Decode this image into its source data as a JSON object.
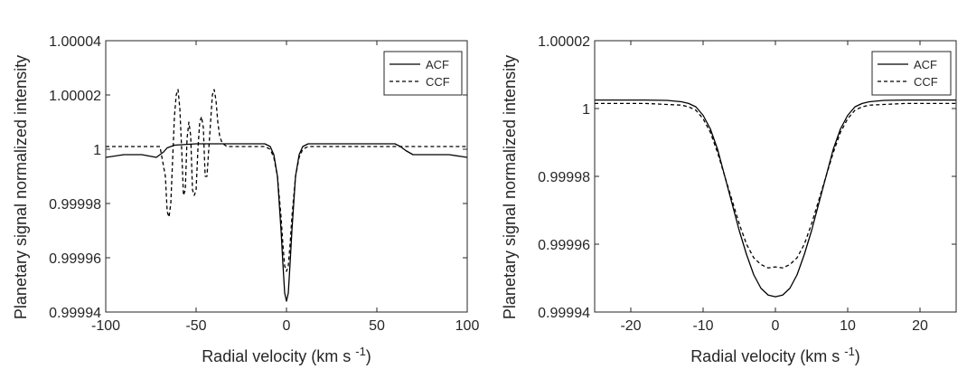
{
  "chart_data": [
    {
      "type": "line",
      "xlabel": "Radial velocity (km s",
      "xlabel_sup": "-1",
      "xlabel_close": ")",
      "ylabel": "Planetary signal normalized intensity",
      "xlim": [
        -100,
        100
      ],
      "ylim": [
        0.99994,
        1.00004
      ],
      "xticks": [
        -100,
        -50,
        0,
        50,
        100
      ],
      "yticks": [
        0.99994,
        0.99996,
        0.99998,
        1.0,
        1.00002,
        1.00004
      ],
      "xtick_labels": [
        "-100",
        "-50",
        "0",
        "50",
        "100"
      ],
      "ytick_labels": [
        "0.99994",
        "0.99996",
        "0.99998",
        "1",
        "1.00002",
        "1.00004"
      ],
      "legend_position": "top-right",
      "grid": false,
      "series": [
        {
          "name": "ACF",
          "style": "solid",
          "x": [
            -100,
            -90,
            -80,
            -72,
            -68,
            -66,
            -62,
            -50,
            -40,
            -30,
            -20,
            -12,
            -9,
            -7,
            -5,
            -3,
            -2,
            -1,
            0,
            1,
            2,
            3,
            5,
            7,
            9,
            12,
            20,
            40,
            60,
            63,
            66,
            70,
            80,
            90,
            100
          ],
          "y": [
            0.999997,
            0.999998,
            0.999998,
            0.999997,
            0.999999,
            1.0000005,
            1.0000015,
            1.000002,
            1.000002,
            1.000002,
            1.000002,
            1.000002,
            1.000001,
            0.999998,
            0.99999,
            0.99997,
            0.999958,
            0.999947,
            0.999944,
            0.999947,
            0.999958,
            0.99997,
            0.99999,
            0.999998,
            1.000001,
            1.000002,
            1.000002,
            1.000002,
            1.000002,
            1.000001,
            0.9999995,
            0.999998,
            0.999998,
            0.999998,
            0.999997
          ]
        },
        {
          "name": "CCF",
          "style": "dashed",
          "x": [
            -100,
            -80,
            -70,
            -67,
            -66,
            -65,
            -64,
            -62,
            -61,
            -60,
            -59,
            -58,
            -57,
            -56,
            -55,
            -54,
            -53,
            -52,
            -51,
            -50,
            -49,
            -48,
            -47,
            -46,
            -45,
            -44,
            -43,
            -42,
            -41,
            -40,
            -39,
            -38,
            -37,
            -36,
            -35,
            -33,
            -30,
            -20,
            -12,
            -9,
            -7,
            -5,
            -3,
            -2,
            -1,
            0,
            1,
            2,
            3,
            5,
            7,
            9,
            12,
            20,
            40,
            60,
            80,
            100
          ],
          "y": [
            1.000001,
            1.000001,
            1.000001,
            0.99999,
            0.999977,
            0.999975,
            0.99998,
            1.000012,
            1.00002,
            1.000022,
            1.000015,
            1.0,
            0.999983,
            0.999985,
            1.000004,
            1.00001,
            1.000005,
            0.999985,
            0.999983,
            0.999985,
            1.0,
            1.00001,
            1.000012,
            1.000008,
            0.99999,
            0.99999,
            1.0,
            1.00001,
            1.00002,
            1.000022,
            1.000018,
            1.00001,
            1.000005,
            1.000003,
            1.000002,
            1.000001,
            1.000001,
            1.000001,
            1.000001,
            1.0,
            0.999997,
            0.99999,
            0.999975,
            0.999965,
            0.999957,
            0.999955,
            0.999957,
            0.999965,
            0.999975,
            0.99999,
            0.999997,
            1.0,
            1.000001,
            1.000001,
            1.000001,
            1.000001,
            1.000001,
            1.000001
          ]
        }
      ]
    },
    {
      "type": "line",
      "xlabel": "Radial velocity (km s",
      "xlabel_sup": "-1",
      "xlabel_close": ")",
      "ylabel": "Planetary signal normalized intensity",
      "xlim": [
        -25,
        25
      ],
      "ylim": [
        0.99994,
        1.00002
      ],
      "xticks": [
        -20,
        -10,
        0,
        10,
        20
      ],
      "yticks": [
        0.99994,
        0.99996,
        0.99998,
        1.0,
        1.00002
      ],
      "xtick_labels": [
        "-20",
        "-10",
        "0",
        "10",
        "20"
      ],
      "ytick_labels": [
        "0.99994",
        "0.99996",
        "0.99998",
        "1",
        "1.00002"
      ],
      "legend_position": "top-right",
      "grid": false,
      "series": [
        {
          "name": "ACF",
          "style": "solid",
          "x": [
            -25,
            -18,
            -15,
            -13,
            -12,
            -11,
            -10,
            -9,
            -8,
            -7,
            -6,
            -5,
            -4,
            -3,
            -2,
            -1,
            0,
            1,
            2,
            3,
            4,
            5,
            6,
            7,
            8,
            9,
            10,
            11,
            12,
            13,
            15,
            18,
            25
          ],
          "y": [
            1.0000025,
            1.0000025,
            1.0000024,
            1.000002,
            1.0000015,
            1.0000005,
            0.999998,
            0.999994,
            0.999988,
            0.99998,
            0.999972,
            0.999964,
            0.999957,
            0.999951,
            0.999947,
            0.999945,
            0.9999445,
            0.999945,
            0.999947,
            0.999951,
            0.999957,
            0.999964,
            0.999972,
            0.99998,
            0.999988,
            0.999994,
            0.999998,
            1.0000005,
            1.0000015,
            1.000002,
            1.0000024,
            1.0000025,
            1.0000025
          ]
        },
        {
          "name": "CCF",
          "style": "dashed",
          "x": [
            -25,
            -18,
            -15,
            -13,
            -12,
            -11,
            -10,
            -9,
            -8,
            -7,
            -6,
            -5,
            -4,
            -3,
            -2,
            -1,
            0,
            1,
            2,
            3,
            4,
            5,
            6,
            7,
            8,
            9,
            10,
            11,
            12,
            13,
            15,
            18,
            25
          ],
          "y": [
            1.0000015,
            1.0000015,
            1.0000012,
            1.000001,
            1.0000005,
            0.9999995,
            0.999997,
            0.999993,
            0.999987,
            0.99998,
            0.999973,
            0.999966,
            0.99996,
            0.999956,
            0.999954,
            0.999953,
            0.9999533,
            0.999953,
            0.999954,
            0.999956,
            0.99996,
            0.999966,
            0.999973,
            0.99998,
            0.999987,
            0.999993,
            0.999997,
            0.9999995,
            1.0000005,
            1.000001,
            1.0000012,
            1.0000015,
            1.0000015
          ]
        }
      ]
    }
  ]
}
